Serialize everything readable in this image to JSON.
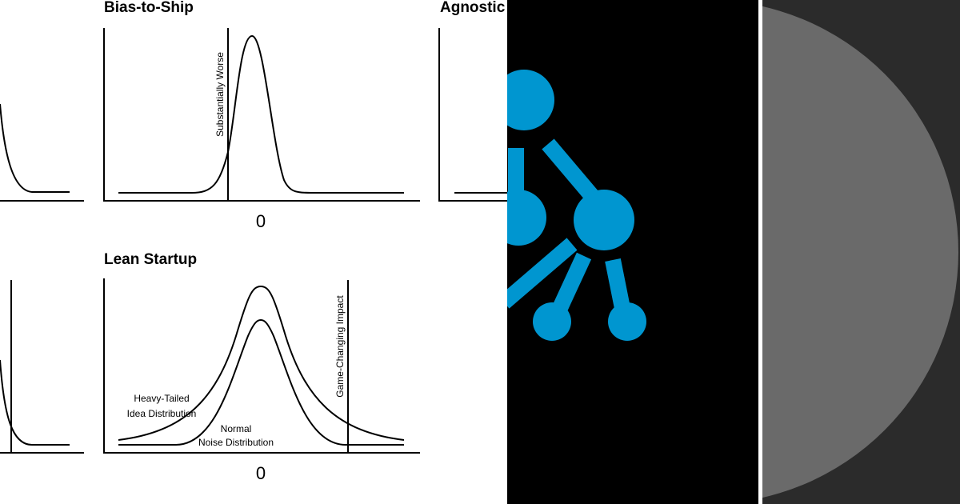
{
  "panels": [
    {
      "title": "Bias-to-Ship",
      "marker_label": "Substantially Worse",
      "axis_label": "0"
    },
    {
      "title": "Agnostic"
    },
    {
      "title": "Lean Startup",
      "marker_label": "Game-Changing Impact",
      "axis_label": "0",
      "curve_labels": [
        [
          "Heavy-Tailed",
          "Idea Distribution"
        ],
        [
          "Normal",
          "Noise Distribution"
        ]
      ]
    }
  ]
}
